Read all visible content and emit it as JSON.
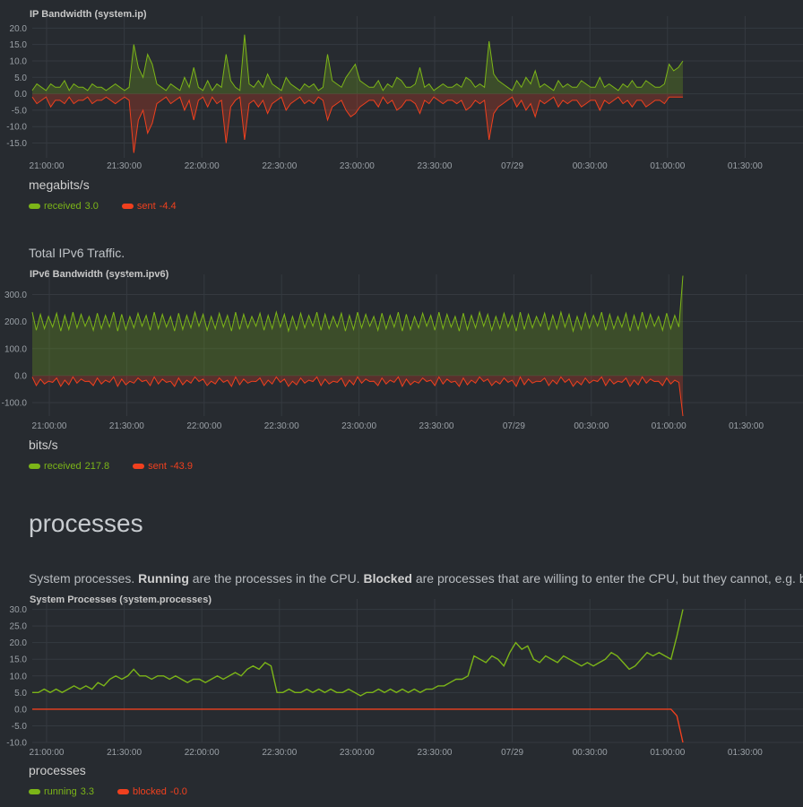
{
  "charts": {
    "ip": {
      "title": "IP Bandwidth (system.ip)",
      "units": "megabits/s",
      "y_ticks": [
        "20.0",
        "15.0",
        "10.0",
        "5.0",
        "0.0",
        "-5.0",
        "-10.0",
        "-15.0"
      ],
      "x_ticks": [
        "21:00:00",
        "21:30:00",
        "22:00:00",
        "22:30:00",
        "23:00:00",
        "23:30:00",
        "07/29",
        "00:30:00",
        "01:00:00",
        "01:30:00"
      ],
      "legend": [
        {
          "name": "received",
          "value": "3.0",
          "color": "#7cb518"
        },
        {
          "name": "sent",
          "value": "-4.4",
          "color": "#f0401e"
        }
      ]
    },
    "ipv6": {
      "description": "Total IPv6 Traffic.",
      "title": "IPv6 Bandwidth (system.ipv6)",
      "units": "bits/s",
      "y_ticks": [
        "300.0",
        "200.0",
        "100.0",
        "0.0",
        "-100.0"
      ],
      "x_ticks": [
        "21:00:00",
        "21:30:00",
        "22:00:00",
        "22:30:00",
        "23:00:00",
        "23:30:00",
        "07/29",
        "00:30:00",
        "01:00:00",
        "01:30:00"
      ],
      "legend": [
        {
          "name": "received",
          "value": "217.8",
          "color": "#7cb518"
        },
        {
          "name": "sent",
          "value": "-43.9",
          "color": "#f0401e"
        }
      ]
    },
    "processes": {
      "section_title": "processes",
      "desc_pre": "System processes. ",
      "desc_bold1": "Running",
      "desc_mid": " are the processes in the CPU. ",
      "desc_bold2": "Blocked",
      "desc_post": " are processes that are willing to enter the CPU, but they cannot, e.g. be",
      "title": "System Processes (system.processes)",
      "units": "processes",
      "y_ticks": [
        "30.0",
        "25.0",
        "20.0",
        "15.0",
        "10.0",
        "5.0",
        "0.0",
        "-5.0",
        "-10.0"
      ],
      "x_ticks": [
        "21:00:00",
        "21:30:00",
        "22:00:00",
        "22:30:00",
        "23:00:00",
        "23:30:00",
        "07/29",
        "00:30:00",
        "01:00:00",
        "01:30:00"
      ],
      "legend": [
        {
          "name": "running",
          "value": "3.3",
          "color": "#7cb518"
        },
        {
          "name": "blocked",
          "value": "-0.0",
          "color": "#f0401e"
        }
      ]
    }
  },
  "chart_data": [
    {
      "type": "area",
      "title": "IP Bandwidth (system.ip)",
      "ylabel": "megabits/s",
      "ylim": [
        -20,
        20
      ],
      "x_range": [
        "20:59:00",
        "01:39:00"
      ],
      "series": [
        {
          "name": "received",
          "values": [
            1,
            3,
            2,
            1,
            3,
            2,
            2,
            4,
            1,
            3,
            2,
            2,
            1,
            3,
            2,
            2,
            1,
            2,
            3,
            2,
            1,
            2,
            15,
            8,
            5,
            12,
            9,
            3,
            2,
            1,
            3,
            2,
            1,
            5,
            2,
            8,
            2,
            1,
            4,
            1,
            3,
            2,
            12,
            4,
            2,
            1,
            18,
            3,
            2,
            4,
            2,
            6,
            3,
            2,
            1,
            5,
            3,
            2,
            1,
            3,
            2,
            3,
            1,
            2,
            12,
            4,
            3,
            2,
            5,
            7,
            9,
            4,
            3,
            2,
            2,
            4,
            1,
            3,
            2,
            5,
            4,
            2,
            2,
            3,
            8,
            2,
            3,
            1,
            2,
            3,
            2,
            2,
            3,
            2,
            5,
            4,
            2,
            3,
            2,
            16,
            6,
            4,
            3,
            2,
            1,
            4,
            2,
            5,
            3,
            7,
            2,
            3,
            2,
            1,
            4,
            2,
            3,
            2,
            2,
            4,
            3,
            2,
            2,
            5,
            2,
            3,
            2,
            1,
            3,
            2,
            4,
            2,
            2,
            4,
            3,
            2,
            2,
            3,
            9,
            7,
            8,
            10
          ]
        },
        {
          "name": "sent",
          "values": [
            -1,
            -3,
            -2,
            -1,
            -4,
            -2,
            -2,
            -3,
            -1,
            -3,
            -2,
            -2,
            -1,
            -3,
            -2,
            -2,
            -1,
            -2,
            -3,
            -2,
            -1,
            -2,
            -18,
            -8,
            -5,
            -12,
            -9,
            -3,
            -2,
            -1,
            -3,
            -2,
            -1,
            -5,
            -2,
            -8,
            -2,
            -1,
            -4,
            -1,
            -3,
            -2,
            -15,
            -4,
            -2,
            -1,
            -14,
            -3,
            -2,
            -4,
            -2,
            -6,
            -3,
            -2,
            -1,
            -5,
            -3,
            -2,
            -1,
            -3,
            -2,
            -3,
            -1,
            -2,
            -8,
            -4,
            -3,
            -2,
            -5,
            -7,
            -6,
            -4,
            -3,
            -2,
            -2,
            -4,
            -1,
            -3,
            -2,
            -5,
            -4,
            -2,
            -2,
            -3,
            -6,
            -2,
            -3,
            -1,
            -2,
            -3,
            -2,
            -2,
            -3,
            -2,
            -5,
            -4,
            -2,
            -3,
            -2,
            -14,
            -6,
            -4,
            -3,
            -2,
            -1,
            -4,
            -2,
            -5,
            -3,
            -7,
            -2,
            -3,
            -2,
            -1,
            -4,
            -2,
            -3,
            -2,
            -2,
            -4,
            -3,
            -2,
            -2,
            -5,
            -2,
            -3,
            -2,
            -1,
            -3,
            -2,
            -4,
            -2,
            -2,
            -4,
            -3,
            -2,
            -2,
            -3,
            -1,
            -1,
            -1,
            -1
          ]
        }
      ]
    },
    {
      "type": "area",
      "title": "IPv6 Bandwidth (system.ipv6)",
      "ylabel": "bits/s",
      "ylim": [
        -150,
        330
      ],
      "x_range": [
        "20:59:00",
        "01:39:00"
      ],
      "pattern": "oscillating received 160-240, sent -10 to -40, final spike received 370 / sent -150",
      "series": [
        {
          "name": "received",
          "oscillate": [
            165,
            235
          ],
          "points": 160,
          "final": 370
        },
        {
          "name": "sent",
          "oscillate": [
            -40,
            -5
          ],
          "points": 160,
          "final": -150
        }
      ]
    },
    {
      "type": "line",
      "title": "System Processes (system.processes)",
      "ylabel": "processes",
      "ylim": [
        -10,
        30
      ],
      "x_range": [
        "20:59:00",
        "01:39:00"
      ],
      "series": [
        {
          "name": "running",
          "values": [
            5,
            5,
            6,
            5,
            6,
            5,
            6,
            7,
            6,
            7,
            6,
            8,
            7,
            9,
            10,
            9,
            10,
            12,
            10,
            10,
            9,
            10,
            10,
            9,
            10,
            9,
            8,
            9,
            9,
            8,
            9,
            10,
            9,
            10,
            11,
            10,
            12,
            13,
            12,
            14,
            13,
            5,
            5,
            6,
            5,
            5,
            6,
            5,
            6,
            5,
            6,
            5,
            5,
            6,
            5,
            4,
            5,
            5,
            6,
            5,
            6,
            5,
            6,
            5,
            6,
            5,
            6,
            6,
            7,
            7,
            8,
            9,
            9,
            10,
            16,
            15,
            14,
            16,
            15,
            13,
            17,
            20,
            18,
            19,
            15,
            14,
            16,
            15,
            14,
            16,
            15,
            14,
            13,
            14,
            13,
            14,
            15,
            17,
            16,
            14,
            12,
            13,
            15,
            17,
            16,
            17,
            16,
            15,
            22,
            30
          ]
        },
        {
          "name": "blocked",
          "values": [
            0,
            0,
            0,
            0,
            0,
            0,
            0,
            0,
            0,
            0,
            0,
            0,
            0,
            0,
            0,
            0,
            0,
            0,
            0,
            0,
            0,
            0,
            0,
            0,
            0,
            0,
            0,
            0,
            0,
            0,
            0,
            0,
            0,
            0,
            0,
            0,
            0,
            0,
            0,
            0,
            0,
            0,
            0,
            0,
            0,
            0,
            0,
            0,
            0,
            0,
            0,
            0,
            0,
            0,
            0,
            0,
            0,
            0,
            0,
            0,
            0,
            0,
            0,
            0,
            0,
            0,
            0,
            0,
            0,
            0,
            0,
            0,
            0,
            0,
            0,
            0,
            0,
            0,
            0,
            0,
            0,
            0,
            0,
            0,
            0,
            0,
            0,
            0,
            0,
            0,
            0,
            0,
            0,
            0,
            0,
            0,
            0,
            0,
            0,
            0,
            0,
            0,
            0,
            0,
            0,
            0,
            0,
            0,
            -2,
            -10
          ]
        }
      ]
    }
  ]
}
